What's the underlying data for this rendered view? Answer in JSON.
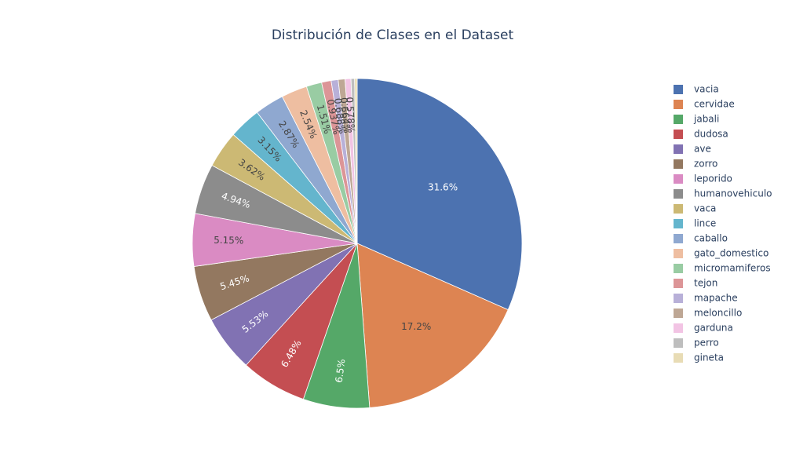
{
  "chart_data": {
    "type": "pie",
    "title": "Distribución de Clases en el Dataset",
    "legend_position": "right",
    "slices": [
      {
        "label": "vacia",
        "percent": 31.6,
        "text": "31.6%",
        "color": "#4c72b0"
      },
      {
        "label": "cervidae",
        "percent": 17.2,
        "text": "17.2%",
        "color": "#dd8452"
      },
      {
        "label": "jabali",
        "percent": 6.5,
        "text": "6.5%",
        "color": "#55a868"
      },
      {
        "label": "dudosa",
        "percent": 6.48,
        "text": "6.48%",
        "color": "#c44e52"
      },
      {
        "label": "ave",
        "percent": 5.53,
        "text": "5.53%",
        "color": "#8172b3"
      },
      {
        "label": "zorro",
        "percent": 5.45,
        "text": "5.45%",
        "color": "#937860"
      },
      {
        "label": "leporido",
        "percent": 5.15,
        "text": "5.15%",
        "color": "#da8bc3"
      },
      {
        "label": "humanovehiculo",
        "percent": 4.94,
        "text": "4.94%",
        "color": "#8c8c8c"
      },
      {
        "label": "vaca",
        "percent": 3.62,
        "text": "3.62%",
        "color": "#ccb974"
      },
      {
        "label": "lince",
        "percent": 3.15,
        "text": "3.15%",
        "color": "#64b5cd"
      },
      {
        "label": "caballo",
        "percent": 2.87,
        "text": "2.87%",
        "color": "#8fa8d0"
      },
      {
        "label": "gato_domestico",
        "percent": 2.54,
        "text": "2.54%",
        "color": "#eebea1"
      },
      {
        "label": "micromamiferos",
        "percent": 1.51,
        "text": "1.51%",
        "color": "#99cca3"
      },
      {
        "label": "tejon",
        "percent": 0.937,
        "text": "0.937%",
        "color": "#dc9597"
      },
      {
        "label": "mapache",
        "percent": 0.688,
        "text": "0.688%",
        "color": "#b8b0d8"
      },
      {
        "label": "meloncillo",
        "percent": 0.664,
        "text": "0.664%",
        "color": "#bea795"
      },
      {
        "label": "garduna",
        "percent": 0.578,
        "text": "0.578%",
        "color": "#f2c4e4"
      },
      {
        "label": "perro",
        "percent": 0.35,
        "text": "",
        "color": "#bebebe"
      },
      {
        "label": "gineta",
        "percent": 0.25,
        "text": "",
        "color": "#e8dcb5"
      }
    ]
  }
}
